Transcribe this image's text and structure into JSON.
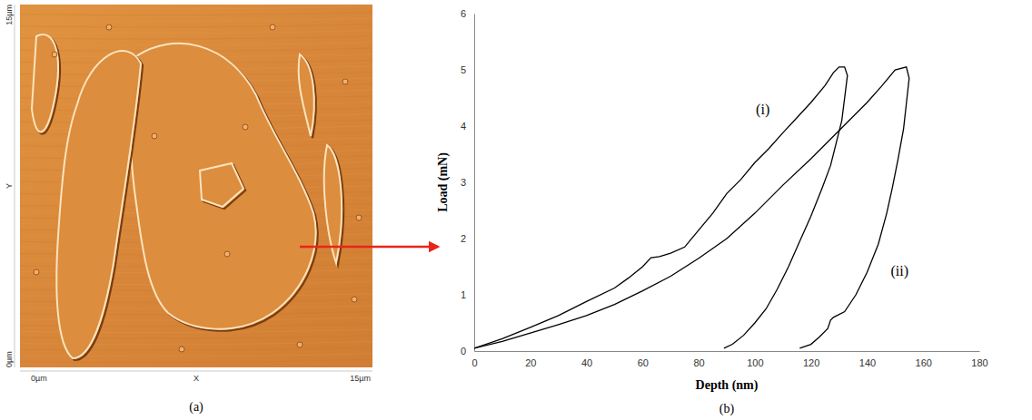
{
  "chart_data": [
    {
      "type": "image",
      "xlabel": "X",
      "ylabel": "Y",
      "xlim": [
        0,
        15
      ],
      "ylim": [
        0,
        15
      ],
      "xticks": [
        {
          "value": 0,
          "label": "0µm"
        },
        {
          "value": 15,
          "label": "15µm"
        }
      ],
      "yticks": [
        {
          "value": 0,
          "label": "0µm"
        },
        {
          "value": 15,
          "label": "15µm"
        }
      ],
      "caption": "(a)"
    },
    {
      "type": "line",
      "xlabel": "Depth (nm)",
      "ylabel": "Load (mN)",
      "xlim": [
        0,
        180
      ],
      "ylim": [
        0,
        6
      ],
      "xticks": [
        0,
        20,
        40,
        60,
        80,
        100,
        120,
        140,
        160,
        180
      ],
      "yticks": [
        0,
        1,
        2,
        3,
        4,
        5,
        6
      ],
      "grid": false,
      "caption": "(b)",
      "series": [
        {
          "name": "(i)",
          "color": "#000000",
          "line_style": "solid",
          "x": [
            0,
            10,
            20,
            30,
            40,
            50,
            55,
            60,
            63,
            66,
            70,
            75,
            80,
            85,
            90,
            95,
            100,
            105,
            110,
            115,
            120,
            125,
            128,
            130,
            132,
            133,
            132,
            131,
            129,
            127,
            124,
            120,
            116,
            112,
            108,
            104,
            100,
            96,
            92,
            89
          ],
          "values": [
            0.05,
            0.22,
            0.42,
            0.63,
            0.88,
            1.12,
            1.3,
            1.5,
            1.66,
            1.68,
            1.74,
            1.85,
            2.15,
            2.45,
            2.8,
            3.05,
            3.35,
            3.6,
            3.88,
            4.15,
            4.42,
            4.72,
            4.95,
            5.05,
            5.05,
            4.9,
            4.5,
            4.1,
            3.7,
            3.3,
            2.9,
            2.4,
            1.95,
            1.5,
            1.1,
            0.75,
            0.5,
            0.28,
            0.12,
            0.05
          ]
        },
        {
          "name": "(ii)",
          "color": "#000000",
          "line_style": "solid",
          "x": [
            0,
            10,
            20,
            30,
            40,
            50,
            60,
            70,
            80,
            90,
            100,
            110,
            120,
            130,
            140,
            145,
            150,
            154,
            155,
            154,
            153,
            151,
            149,
            147,
            144,
            140,
            136,
            132,
            128,
            127,
            126,
            123,
            120,
            116
          ],
          "values": [
            0.05,
            0.17,
            0.32,
            0.47,
            0.63,
            0.83,
            1.07,
            1.33,
            1.65,
            2.0,
            2.45,
            2.95,
            3.42,
            3.92,
            4.42,
            4.7,
            5.0,
            5.05,
            4.85,
            4.4,
            3.95,
            3.4,
            2.9,
            2.45,
            1.9,
            1.4,
            1.0,
            0.7,
            0.6,
            0.55,
            0.4,
            0.25,
            0.12,
            0.05
          ]
        }
      ]
    }
  ]
}
